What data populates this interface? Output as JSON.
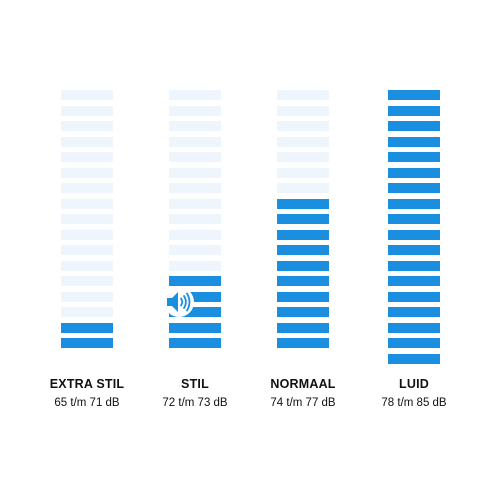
{
  "levels": [
    {
      "name": "EXTRA STIL",
      "range": "65 t/m 71 dB",
      "active_bars": 2,
      "total_bars": 17
    },
    {
      "name": "STIL",
      "range": "72 t/m 73 dB",
      "active_bars": 5,
      "total_bars": 17
    },
    {
      "name": "NORMAAL",
      "range": "74 t/m 77 dB",
      "active_bars": 10,
      "total_bars": 17
    },
    {
      "name": "LUID",
      "range": "78 t/m 85 dB",
      "active_bars": 18,
      "total_bars": 18
    }
  ],
  "selected_level": "STIL",
  "colors": {
    "active": "#1a8fe0",
    "inactive": "#eef5fc"
  },
  "icons": {
    "selected_marker": "speaker-volume-icon"
  }
}
